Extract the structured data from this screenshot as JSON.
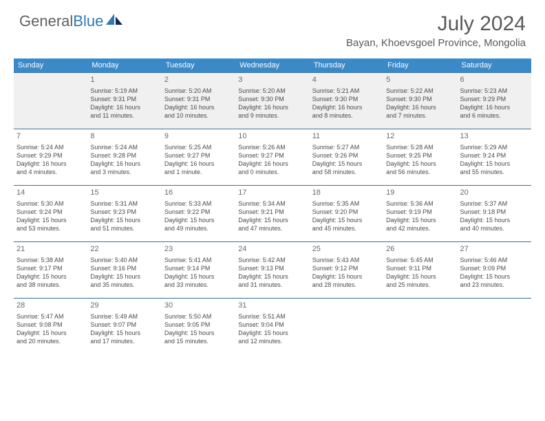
{
  "logo": {
    "general": "General",
    "blue": "Blue"
  },
  "title": "July 2024",
  "location": "Bayan, Khoevsgoel Province, Mongolia",
  "headers": [
    "Sunday",
    "Monday",
    "Tuesday",
    "Wednesday",
    "Thursday",
    "Friday",
    "Saturday"
  ],
  "colors": {
    "header_bg": "#3a89c9",
    "header_text": "#ffffff",
    "row_border": "#3a6f9c",
    "first_week_bg": "#f0f0f0",
    "title_color": "#595959",
    "logo_gray": "#606060",
    "logo_blue": "#2f77b5"
  },
  "weeks": [
    [
      {
        "num": "",
        "lines": []
      },
      {
        "num": "1",
        "lines": [
          "Sunrise: 5:19 AM",
          "Sunset: 9:31 PM",
          "Daylight: 16 hours",
          "and 11 minutes."
        ]
      },
      {
        "num": "2",
        "lines": [
          "Sunrise: 5:20 AM",
          "Sunset: 9:31 PM",
          "Daylight: 16 hours",
          "and 10 minutes."
        ]
      },
      {
        "num": "3",
        "lines": [
          "Sunrise: 5:20 AM",
          "Sunset: 9:30 PM",
          "Daylight: 16 hours",
          "and 9 minutes."
        ]
      },
      {
        "num": "4",
        "lines": [
          "Sunrise: 5:21 AM",
          "Sunset: 9:30 PM",
          "Daylight: 16 hours",
          "and 8 minutes."
        ]
      },
      {
        "num": "5",
        "lines": [
          "Sunrise: 5:22 AM",
          "Sunset: 9:30 PM",
          "Daylight: 16 hours",
          "and 7 minutes."
        ]
      },
      {
        "num": "6",
        "lines": [
          "Sunrise: 5:23 AM",
          "Sunset: 9:29 PM",
          "Daylight: 16 hours",
          "and 6 minutes."
        ]
      }
    ],
    [
      {
        "num": "7",
        "lines": [
          "Sunrise: 5:24 AM",
          "Sunset: 9:29 PM",
          "Daylight: 16 hours",
          "and 4 minutes."
        ]
      },
      {
        "num": "8",
        "lines": [
          "Sunrise: 5:24 AM",
          "Sunset: 9:28 PM",
          "Daylight: 16 hours",
          "and 3 minutes."
        ]
      },
      {
        "num": "9",
        "lines": [
          "Sunrise: 5:25 AM",
          "Sunset: 9:27 PM",
          "Daylight: 16 hours",
          "and 1 minute."
        ]
      },
      {
        "num": "10",
        "lines": [
          "Sunrise: 5:26 AM",
          "Sunset: 9:27 PM",
          "Daylight: 16 hours",
          "and 0 minutes."
        ]
      },
      {
        "num": "11",
        "lines": [
          "Sunrise: 5:27 AM",
          "Sunset: 9:26 PM",
          "Daylight: 15 hours",
          "and 58 minutes."
        ]
      },
      {
        "num": "12",
        "lines": [
          "Sunrise: 5:28 AM",
          "Sunset: 9:25 PM",
          "Daylight: 15 hours",
          "and 56 minutes."
        ]
      },
      {
        "num": "13",
        "lines": [
          "Sunrise: 5:29 AM",
          "Sunset: 9:24 PM",
          "Daylight: 15 hours",
          "and 55 minutes."
        ]
      }
    ],
    [
      {
        "num": "14",
        "lines": [
          "Sunrise: 5:30 AM",
          "Sunset: 9:24 PM",
          "Daylight: 15 hours",
          "and 53 minutes."
        ]
      },
      {
        "num": "15",
        "lines": [
          "Sunrise: 5:31 AM",
          "Sunset: 9:23 PM",
          "Daylight: 15 hours",
          "and 51 minutes."
        ]
      },
      {
        "num": "16",
        "lines": [
          "Sunrise: 5:33 AM",
          "Sunset: 9:22 PM",
          "Daylight: 15 hours",
          "and 49 minutes."
        ]
      },
      {
        "num": "17",
        "lines": [
          "Sunrise: 5:34 AM",
          "Sunset: 9:21 PM",
          "Daylight: 15 hours",
          "and 47 minutes."
        ]
      },
      {
        "num": "18",
        "lines": [
          "Sunrise: 5:35 AM",
          "Sunset: 9:20 PM",
          "Daylight: 15 hours",
          "and 45 minutes."
        ]
      },
      {
        "num": "19",
        "lines": [
          "Sunrise: 5:36 AM",
          "Sunset: 9:19 PM",
          "Daylight: 15 hours",
          "and 42 minutes."
        ]
      },
      {
        "num": "20",
        "lines": [
          "Sunrise: 5:37 AM",
          "Sunset: 9:18 PM",
          "Daylight: 15 hours",
          "and 40 minutes."
        ]
      }
    ],
    [
      {
        "num": "21",
        "lines": [
          "Sunrise: 5:38 AM",
          "Sunset: 9:17 PM",
          "Daylight: 15 hours",
          "and 38 minutes."
        ]
      },
      {
        "num": "22",
        "lines": [
          "Sunrise: 5:40 AM",
          "Sunset: 9:16 PM",
          "Daylight: 15 hours",
          "and 35 minutes."
        ]
      },
      {
        "num": "23",
        "lines": [
          "Sunrise: 5:41 AM",
          "Sunset: 9:14 PM",
          "Daylight: 15 hours",
          "and 33 minutes."
        ]
      },
      {
        "num": "24",
        "lines": [
          "Sunrise: 5:42 AM",
          "Sunset: 9:13 PM",
          "Daylight: 15 hours",
          "and 31 minutes."
        ]
      },
      {
        "num": "25",
        "lines": [
          "Sunrise: 5:43 AM",
          "Sunset: 9:12 PM",
          "Daylight: 15 hours",
          "and 28 minutes."
        ]
      },
      {
        "num": "26",
        "lines": [
          "Sunrise: 5:45 AM",
          "Sunset: 9:11 PM",
          "Daylight: 15 hours",
          "and 25 minutes."
        ]
      },
      {
        "num": "27",
        "lines": [
          "Sunrise: 5:46 AM",
          "Sunset: 9:09 PM",
          "Daylight: 15 hours",
          "and 23 minutes."
        ]
      }
    ],
    [
      {
        "num": "28",
        "lines": [
          "Sunrise: 5:47 AM",
          "Sunset: 9:08 PM",
          "Daylight: 15 hours",
          "and 20 minutes."
        ]
      },
      {
        "num": "29",
        "lines": [
          "Sunrise: 5:49 AM",
          "Sunset: 9:07 PM",
          "Daylight: 15 hours",
          "and 17 minutes."
        ]
      },
      {
        "num": "30",
        "lines": [
          "Sunrise: 5:50 AM",
          "Sunset: 9:05 PM",
          "Daylight: 15 hours",
          "and 15 minutes."
        ]
      },
      {
        "num": "31",
        "lines": [
          "Sunrise: 5:51 AM",
          "Sunset: 9:04 PM",
          "Daylight: 15 hours",
          "and 12 minutes."
        ]
      },
      {
        "num": "",
        "lines": []
      },
      {
        "num": "",
        "lines": []
      },
      {
        "num": "",
        "lines": []
      }
    ]
  ]
}
